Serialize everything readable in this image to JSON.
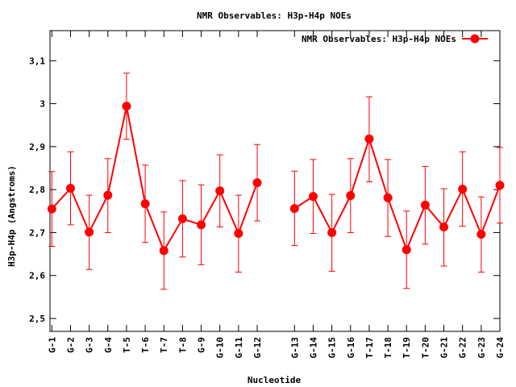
{
  "chart_data": {
    "type": "line",
    "title": "NMR Observables: H3p-H4p NOEs",
    "xlabel": "Nucleotide",
    "ylabel": "H3p-H4p (Angstroms)",
    "ylim": [
      2.47,
      3.17
    ],
    "yticks": [
      "2,5",
      "2,6",
      "2,7",
      "2,8",
      "2,9",
      "3",
      "3,1"
    ],
    "ytick_values": [
      2.5,
      2.6,
      2.7,
      2.8,
      2.9,
      3.0,
      3.1
    ],
    "xlim": [
      0.9,
      25.0
    ],
    "grid": false,
    "legend_position": "top-right",
    "series": [
      {
        "name": "NMR Observables: H3p-H4p NOEs",
        "color": "#ff0000",
        "segments": [
          {
            "categories": [
              "G-1",
              "G-2",
              "G-3",
              "G-4",
              "T-5",
              "T-6",
              "T-7",
              "T-8",
              "G-9",
              "G-10",
              "G-11",
              "G-12"
            ],
            "x": [
              1,
              2,
              3,
              4,
              5,
              6,
              7,
              8,
              9,
              10,
              11,
              12
            ],
            "values": [
              2.755,
              2.803,
              2.701,
              2.787,
              2.994,
              2.767,
              2.658,
              2.732,
              2.718,
              2.797,
              2.698,
              2.816
            ],
            "err_low": [
              2.668,
              2.718,
              2.614,
              2.7,
              2.917,
              2.677,
              2.568,
              2.643,
              2.625,
              2.713,
              2.608,
              2.727
            ],
            "err_high": [
              2.842,
              2.888,
              2.787,
              2.872,
              3.071,
              2.857,
              2.748,
              2.821,
              2.811,
              2.881,
              2.787,
              2.905
            ]
          },
          {
            "categories": [
              "G-13",
              "G-14",
              "G-15",
              "G-16",
              "T-17",
              "T-18",
              "T-19",
              "T-20",
              "G-21",
              "G-22",
              "G-23",
              "G-24"
            ],
            "x": [
              14,
              15,
              16,
              17,
              18,
              19,
              20,
              21,
              22,
              23,
              24,
              25
            ],
            "values": [
              2.756,
              2.784,
              2.7,
              2.786,
              2.918,
              2.781,
              2.66,
              2.764,
              2.713,
              2.801,
              2.696,
              2.81
            ],
            "err_low": [
              2.67,
              2.698,
              2.61,
              2.7,
              2.818,
              2.691,
              2.57,
              2.673,
              2.622,
              2.715,
              2.608,
              2.722
            ],
            "err_high": [
              2.843,
              2.87,
              2.789,
              2.872,
              3.016,
              2.87,
              2.75,
              2.854,
              2.802,
              2.888,
              2.783,
              2.898
            ]
          }
        ]
      }
    ]
  }
}
